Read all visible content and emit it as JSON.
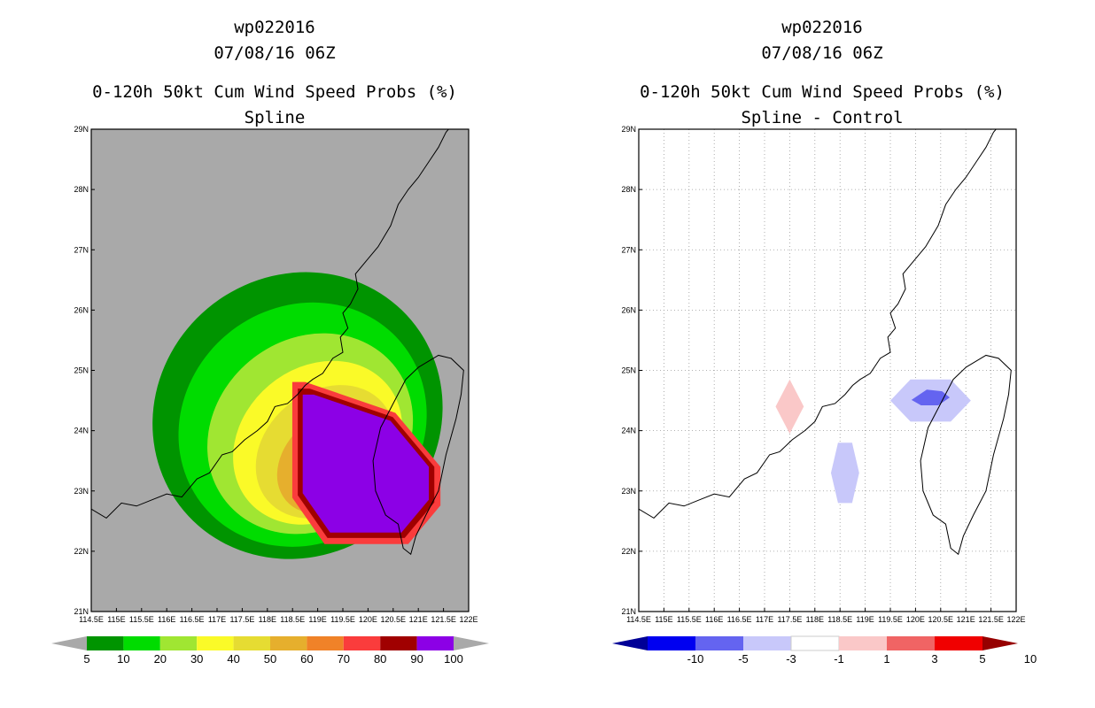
{
  "left": {
    "title1": "wp022016",
    "title2": "07/08/16 06Z",
    "title3": "0-120h 50kt Cum Wind Speed Probs (%)",
    "title4": "Spline"
  },
  "right": {
    "title1": "wp022016",
    "title2": "07/08/16 06Z",
    "title3": "0-120h 50kt Cum Wind Speed Probs (%)",
    "title4": "Spline - Control"
  },
  "chart_data": [
    {
      "type": "heatmap",
      "title": "0-120h 50kt Cum Wind Speed Probs (%)",
      "subtitle": "Spline",
      "storm": "wp022016",
      "time": "07/08/16 06Z",
      "xlim": [
        114.5,
        122
      ],
      "ylim": [
        21,
        29
      ],
      "x_ticks": [
        "114.5E",
        "115E",
        "115.5E",
        "116E",
        "116.5E",
        "117E",
        "117.5E",
        "118E",
        "118.5E",
        "119E",
        "119.5E",
        "120E",
        "120.5E",
        "121E",
        "121.5E",
        "122E"
      ],
      "y_ticks": [
        "21N",
        "22N",
        "23N",
        "24N",
        "25N",
        "26N",
        "27N",
        "28N",
        "29N"
      ],
      "colorbar_labels": [
        "5",
        "10",
        "20",
        "30",
        "40",
        "50",
        "60",
        "70",
        "80",
        "90",
        "100"
      ],
      "colorbar_colors": [
        "#009400",
        "#00dc00",
        "#a0e632",
        "#fafa28",
        "#e6dc32",
        "#e6af2d",
        "#f08228",
        "#fa3c3c",
        "#a00000",
        "#8c00e6"
      ],
      "background_color": "#a9a9a9",
      "contours": [
        {
          "level": 5,
          "center": [
            118.6,
            24.25
          ],
          "rx": 2.95,
          "ry": 1.45,
          "angle": -40
        },
        {
          "level": 10,
          "center": [
            118.7,
            24.1
          ],
          "rx": 2.55,
          "ry": 1.22,
          "angle": -40
        },
        {
          "level": 20,
          "center": [
            118.85,
            23.95
          ],
          "rx": 2.15,
          "ry": 0.98,
          "angle": -40
        },
        {
          "level": 30,
          "center": [
            119.0,
            23.8
          ],
          "rx": 1.8,
          "ry": 0.78,
          "angle": -40
        },
        {
          "level": 40,
          "center": [
            119.15,
            23.65
          ],
          "rx": 1.5,
          "ry": 0.62,
          "angle": -40
        },
        {
          "level": 50,
          "center": [
            119.3,
            23.5
          ],
          "rx": 1.22,
          "ry": 0.48,
          "angle": -40
        },
        {
          "level": 60,
          "center": [
            119.45,
            23.35
          ],
          "rx": 0.95,
          "ry": 0.36,
          "angle": -40
        }
      ],
      "core_region_lonlat": [
        [
          118.8,
          24.5
        ],
        [
          119.0,
          24.5
        ],
        [
          120.4,
          24.1
        ],
        [
          121.1,
          23.4
        ],
        [
          121.1,
          22.9
        ],
        [
          120.6,
          22.4
        ],
        [
          119.3,
          22.4
        ],
        [
          118.8,
          23.0
        ]
      ]
    },
    {
      "type": "heatmap",
      "title": "0-120h 50kt Cum Wind Speed Probs (%)",
      "subtitle": "Spline - Control",
      "storm": "wp022016",
      "time": "07/08/16 06Z",
      "xlim": [
        114.5,
        122
      ],
      "ylim": [
        21,
        29
      ],
      "x_ticks": [
        "114.5E",
        "115E",
        "115.5E",
        "116E",
        "116.5E",
        "117E",
        "117.5E",
        "118E",
        "118.5E",
        "119E",
        "119.5E",
        "120E",
        "120.5E",
        "121E",
        "121.5E",
        "122E"
      ],
      "y_ticks": [
        "21N",
        "22N",
        "23N",
        "24N",
        "25N",
        "26N",
        "27N",
        "28N",
        "29N"
      ],
      "colorbar_labels": [
        "-10",
        "-5",
        "-3",
        "-1",
        "1",
        "3",
        "5",
        "10"
      ],
      "colorbar_colors": [
        "#000096",
        "#0000f0",
        "#6464f0",
        "#c8c8fa",
        "#ffffff",
        "#fac8c8",
        "#f06464",
        "#f00000",
        "#960000"
      ],
      "background_color": "#ffffff",
      "anomalies": [
        {
          "value": 1.5,
          "shape": "diamond",
          "center": [
            117.5,
            24.4
          ],
          "half_width": 0.28,
          "half_height": 0.45
        },
        {
          "value": -1.5,
          "shape": "hexagon",
          "center": [
            118.6,
            23.3
          ],
          "half_width": 0.28,
          "half_height": 0.5
        },
        {
          "value": -1.5,
          "shape": "hexagon",
          "center": [
            120.3,
            24.5
          ],
          "half_width": 0.8,
          "half_height": 0.35
        },
        {
          "value": -4,
          "shape": "blob",
          "center": [
            120.3,
            24.55
          ],
          "half_width": 0.38,
          "half_height": 0.13
        }
      ]
    }
  ],
  "icons": {
    "coastline": "coastline-map"
  }
}
